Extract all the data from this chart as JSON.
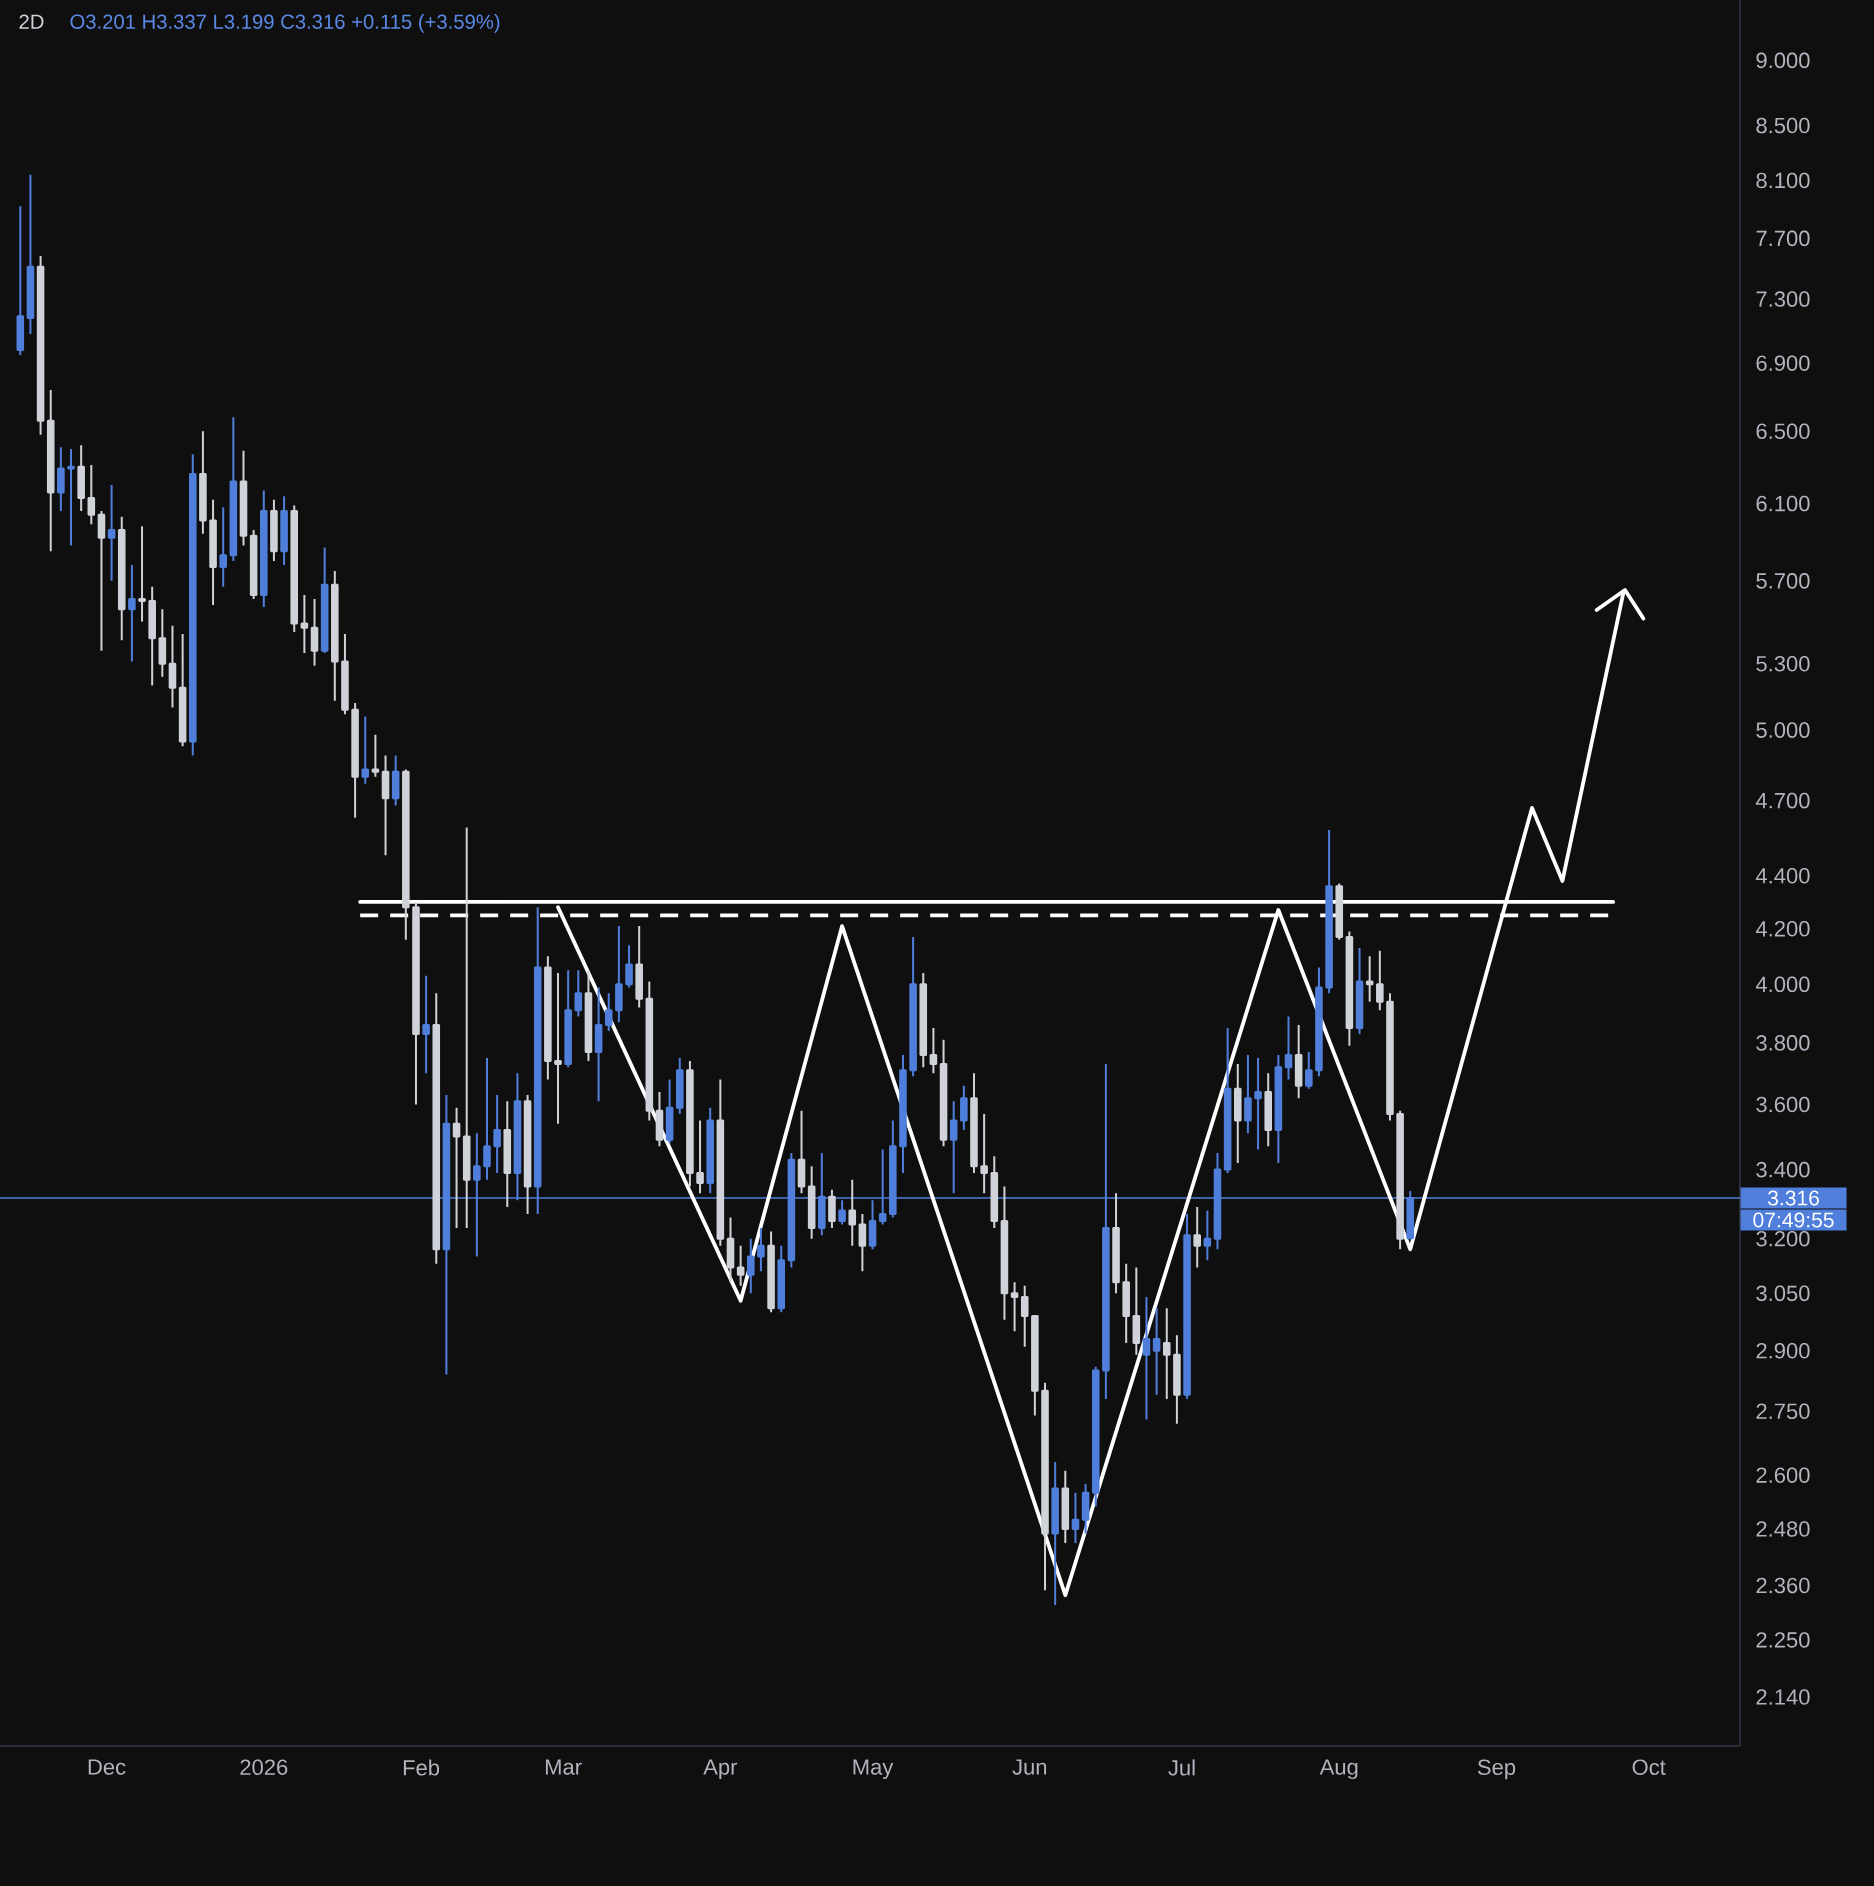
{
  "chart_data": {
    "type": "candlestick",
    "title": "2D",
    "subtitle": "O3.201 H3.337 L3.199 C3.316 +0.115 (+3.59%)",
    "x": [
      "2025-11-14",
      "2025-11-16",
      "2025-11-18",
      "2025-11-20",
      "2025-11-22",
      "2025-11-24",
      "2025-11-26",
      "2025-11-28",
      "2025-11-30",
      "2025-12-02",
      "2025-12-04",
      "2025-12-06",
      "2025-12-08",
      "2025-12-10",
      "2025-12-12",
      "2025-12-14",
      "2025-12-16",
      "2025-12-18",
      "2025-12-20",
      "2025-12-22",
      "2025-12-24",
      "2025-12-26",
      "2025-12-28",
      "2025-12-30",
      "2026-01-01",
      "2026-01-03",
      "2026-01-05",
      "2026-01-07",
      "2026-01-09",
      "2026-01-11",
      "2026-01-13",
      "2026-01-15",
      "2026-01-17",
      "2026-01-19",
      "2026-01-21",
      "2026-01-23",
      "2026-01-25",
      "2026-01-27",
      "2026-01-29",
      "2026-01-31",
      "2026-02-02",
      "2026-02-04",
      "2026-02-06",
      "2026-02-08",
      "2026-02-10",
      "2026-02-12",
      "2026-02-14",
      "2026-02-16",
      "2026-02-18",
      "2026-02-20",
      "2026-02-22",
      "2026-02-24",
      "2026-02-26",
      "2026-02-28",
      "2026-03-02",
      "2026-03-04",
      "2026-03-06",
      "2026-03-08",
      "2026-03-10",
      "2026-03-12",
      "2026-03-14",
      "2026-03-16",
      "2026-03-18",
      "2026-03-20",
      "2026-03-22",
      "2026-03-24",
      "2026-03-26",
      "2026-03-28",
      "2026-03-30",
      "2026-04-01",
      "2026-04-03",
      "2026-04-05",
      "2026-04-07",
      "2026-04-09",
      "2026-04-11",
      "2026-04-13",
      "2026-04-15",
      "2026-04-17",
      "2026-04-19",
      "2026-04-21",
      "2026-04-23",
      "2026-04-25",
      "2026-04-27",
      "2026-04-29",
      "2026-05-01",
      "2026-05-03",
      "2026-05-05",
      "2026-05-07",
      "2026-05-09",
      "2026-05-11",
      "2026-05-13",
      "2026-05-15",
      "2026-05-17",
      "2026-05-19",
      "2026-05-21",
      "2026-05-23",
      "2026-05-25",
      "2026-05-27",
      "2026-05-29",
      "2026-05-31",
      "2026-06-02",
      "2026-06-04",
      "2026-06-06",
      "2026-06-08",
      "2026-06-10",
      "2026-06-12",
      "2026-06-14",
      "2026-06-16",
      "2026-06-18",
      "2026-06-20",
      "2026-06-22",
      "2026-06-24",
      "2026-06-26",
      "2026-06-28",
      "2026-06-30",
      "2026-07-02",
      "2026-07-04",
      "2026-07-06",
      "2026-07-08",
      "2026-07-10",
      "2026-07-12",
      "2026-07-14",
      "2026-07-16",
      "2026-07-18",
      "2026-07-20",
      "2026-07-22",
      "2026-07-24",
      "2026-07-26",
      "2026-07-28",
      "2026-07-30",
      "2026-08-01",
      "2026-08-03",
      "2026-08-05",
      "2026-08-07",
      "2026-08-09",
      "2026-08-11",
      "2026-08-13",
      "2026-08-15"
    ],
    "ohlc": [
      [
        6.98,
        7.92,
        6.95,
        7.19
      ],
      [
        7.18,
        8.14,
        7.08,
        7.51
      ],
      [
        7.51,
        7.58,
        6.48,
        6.56
      ],
      [
        6.56,
        6.74,
        5.85,
        6.16
      ],
      [
        6.16,
        6.41,
        6.06,
        6.29
      ],
      [
        6.29,
        6.4,
        5.88,
        6.3
      ],
      [
        6.3,
        6.42,
        6.06,
        6.13
      ],
      [
        6.13,
        6.31,
        5.99,
        6.04
      ],
      [
        6.04,
        6.06,
        5.36,
        5.92
      ],
      [
        5.92,
        6.2,
        5.7,
        5.96
      ],
      [
        5.96,
        6.03,
        5.41,
        5.56
      ],
      [
        5.56,
        5.78,
        5.31,
        5.61
      ],
      [
        5.61,
        5.98,
        5.5,
        5.6
      ],
      [
        5.6,
        5.67,
        5.2,
        5.42
      ],
      [
        5.42,
        5.56,
        5.24,
        5.3
      ],
      [
        5.3,
        5.48,
        5.1,
        5.19
      ],
      [
        5.19,
        5.44,
        4.93,
        4.95
      ],
      [
        4.95,
        6.37,
        4.89,
        6.26
      ],
      [
        6.26,
        6.5,
        5.94,
        6.01
      ],
      [
        6.01,
        6.12,
        5.58,
        5.77
      ],
      [
        5.77,
        6.08,
        5.67,
        5.83
      ],
      [
        5.83,
        6.58,
        5.8,
        6.22
      ],
      [
        6.22,
        6.39,
        5.88,
        5.93
      ],
      [
        5.93,
        5.96,
        5.61,
        5.63
      ],
      [
        5.63,
        6.17,
        5.57,
        6.06
      ],
      [
        6.06,
        6.12,
        5.8,
        5.85
      ],
      [
        5.85,
        6.14,
        5.78,
        6.06
      ],
      [
        6.06,
        6.09,
        5.45,
        5.49
      ],
      [
        5.49,
        5.63,
        5.35,
        5.47
      ],
      [
        5.47,
        5.61,
        5.29,
        5.36
      ],
      [
        5.36,
        5.87,
        5.35,
        5.68
      ],
      [
        5.68,
        5.75,
        5.13,
        5.31
      ],
      [
        5.31,
        5.44,
        5.07,
        5.09
      ],
      [
        5.09,
        5.12,
        4.63,
        4.8
      ],
      [
        4.8,
        5.06,
        4.77,
        4.83
      ],
      [
        4.83,
        4.98,
        4.8,
        4.82
      ],
      [
        4.82,
        4.89,
        4.48,
        4.71
      ],
      [
        4.71,
        4.89,
        4.68,
        4.82
      ],
      [
        4.82,
        4.83,
        4.16,
        4.28
      ],
      [
        4.28,
        4.3,
        3.6,
        3.83
      ],
      [
        3.83,
        4.03,
        3.7,
        3.86
      ],
      [
        3.86,
        3.97,
        3.13,
        3.17
      ],
      [
        3.17,
        3.63,
        2.84,
        3.54
      ],
      [
        3.54,
        3.59,
        3.23,
        3.5
      ],
      [
        3.5,
        4.59,
        3.23,
        3.37
      ],
      [
        3.37,
        3.51,
        3.15,
        3.41
      ],
      [
        3.41,
        3.75,
        3.37,
        3.47
      ],
      [
        3.47,
        3.63,
        3.39,
        3.52
      ],
      [
        3.52,
        3.61,
        3.29,
        3.39
      ],
      [
        3.39,
        3.7,
        3.31,
        3.61
      ],
      [
        3.61,
        3.63,
        3.27,
        3.35
      ],
      [
        3.35,
        4.28,
        3.27,
        4.06
      ],
      [
        4.06,
        4.1,
        3.68,
        3.74
      ],
      [
        3.74,
        4.04,
        3.54,
        3.73
      ],
      [
        3.73,
        4.05,
        3.72,
        3.91
      ],
      [
        3.91,
        4.05,
        3.89,
        3.97
      ],
      [
        3.97,
        4.05,
        3.74,
        3.77
      ],
      [
        3.77,
        3.99,
        3.61,
        3.86
      ],
      [
        3.86,
        3.97,
        3.84,
        3.91
      ],
      [
        3.91,
        4.21,
        3.87,
        4.0
      ],
      [
        4.0,
        4.14,
        3.99,
        4.07
      ],
      [
        4.07,
        4.21,
        3.92,
        3.95
      ],
      [
        3.95,
        4.01,
        3.55,
        3.58
      ],
      [
        3.58,
        3.64,
        3.47,
        3.49
      ],
      [
        3.49,
        3.68,
        3.48,
        3.59
      ],
      [
        3.59,
        3.75,
        3.57,
        3.71
      ],
      [
        3.71,
        3.74,
        3.35,
        3.39
      ],
      [
        3.39,
        3.55,
        3.33,
        3.36
      ],
      [
        3.36,
        3.59,
        3.33,
        3.55
      ],
      [
        3.55,
        3.68,
        3.18,
        3.2
      ],
      [
        3.2,
        3.26,
        3.08,
        3.12
      ],
      [
        3.12,
        3.18,
        3.07,
        3.1
      ],
      [
        3.1,
        3.2,
        3.05,
        3.15
      ],
      [
        3.15,
        3.23,
        3.11,
        3.18
      ],
      [
        3.18,
        3.22,
        3.0,
        3.01
      ],
      [
        3.01,
        3.18,
        3.0,
        3.14
      ],
      [
        3.14,
        3.45,
        3.12,
        3.43
      ],
      [
        3.43,
        3.58,
        3.33,
        3.35
      ],
      [
        3.35,
        3.41,
        3.2,
        3.23
      ],
      [
        3.23,
        3.45,
        3.21,
        3.32
      ],
      [
        3.32,
        3.34,
        3.23,
        3.25
      ],
      [
        3.25,
        3.31,
        3.24,
        3.28
      ],
      [
        3.28,
        3.37,
        3.18,
        3.24
      ],
      [
        3.24,
        3.27,
        3.11,
        3.18
      ],
      [
        3.18,
        3.31,
        3.17,
        3.25
      ],
      [
        3.25,
        3.46,
        3.24,
        3.27
      ],
      [
        3.27,
        3.55,
        3.26,
        3.47
      ],
      [
        3.47,
        3.76,
        3.39,
        3.71
      ],
      [
        3.71,
        4.17,
        3.69,
        4.0
      ],
      [
        4.0,
        4.04,
        3.72,
        3.76
      ],
      [
        3.76,
        3.85,
        3.7,
        3.73
      ],
      [
        3.73,
        3.81,
        3.47,
        3.49
      ],
      [
        3.49,
        3.61,
        3.33,
        3.55
      ],
      [
        3.55,
        3.66,
        3.52,
        3.62
      ],
      [
        3.62,
        3.7,
        3.39,
        3.41
      ],
      [
        3.41,
        3.57,
        3.33,
        3.39
      ],
      [
        3.39,
        3.44,
        3.23,
        3.25
      ],
      [
        3.25,
        3.35,
        2.98,
        3.05
      ],
      [
        3.05,
        3.08,
        2.95,
        3.04
      ],
      [
        3.04,
        3.07,
        2.91,
        2.99
      ],
      [
        2.99,
        2.99,
        2.74,
        2.8
      ],
      [
        2.8,
        2.82,
        2.35,
        2.47
      ],
      [
        2.47,
        2.63,
        2.32,
        2.57
      ],
      [
        2.57,
        2.61,
        2.45,
        2.48
      ],
      [
        2.48,
        2.56,
        2.45,
        2.5
      ],
      [
        2.5,
        2.58,
        2.47,
        2.56
      ],
      [
        2.56,
        2.86,
        2.53,
        2.85
      ],
      [
        2.85,
        3.73,
        2.78,
        3.23
      ],
      [
        3.23,
        3.33,
        3.05,
        3.08
      ],
      [
        3.08,
        3.13,
        2.92,
        2.99
      ],
      [
        2.99,
        3.12,
        2.89,
        2.92
      ],
      [
        2.89,
        3.04,
        2.73,
        2.93
      ],
      [
        2.9,
        3.01,
        2.79,
        2.93
      ],
      [
        2.92,
        3.01,
        2.78,
        2.89
      ],
      [
        2.89,
        2.94,
        2.72,
        2.79
      ],
      [
        2.79,
        3.27,
        2.78,
        3.21
      ],
      [
        3.21,
        3.29,
        3.12,
        3.18
      ],
      [
        3.18,
        3.28,
        3.14,
        3.2
      ],
      [
        3.2,
        3.45,
        3.17,
        3.4
      ],
      [
        3.4,
        3.85,
        3.39,
        3.65
      ],
      [
        3.65,
        3.73,
        3.42,
        3.55
      ],
      [
        3.55,
        3.76,
        3.51,
        3.62
      ],
      [
        3.62,
        3.75,
        3.46,
        3.64
      ],
      [
        3.64,
        3.7,
        3.47,
        3.52
      ],
      [
        3.52,
        3.76,
        3.42,
        3.72
      ],
      [
        3.72,
        3.89,
        3.68,
        3.76
      ],
      [
        3.76,
        3.86,
        3.62,
        3.66
      ],
      [
        3.66,
        3.77,
        3.65,
        3.71
      ],
      [
        3.71,
        4.06,
        3.69,
        3.99
      ],
      [
        3.99,
        4.58,
        3.97,
        4.36
      ],
      [
        4.36,
        4.37,
        4.16,
        4.17
      ],
      [
        4.17,
        4.19,
        3.79,
        3.85
      ],
      [
        3.85,
        4.13,
        3.83,
        4.01
      ],
      [
        4.01,
        4.1,
        3.94,
        4.0
      ],
      [
        4.0,
        4.12,
        3.91,
        3.94
      ],
      [
        3.94,
        3.97,
        3.55,
        3.57
      ],
      [
        3.57,
        3.58,
        3.17,
        3.2
      ],
      [
        3.201,
        3.337,
        3.199,
        3.316
      ]
    ],
    "colors": [
      "#4f7fdb",
      "#4f7fdb",
      "#cfd2d8",
      "#cfd2d8",
      "#4f7fdb",
      "#4f7fdb",
      "#cfd2d8",
      "#cfd2d8",
      "#cfd2d8",
      "#4f7fdb",
      "#cfd2d8",
      "#4f7fdb",
      "#cfd2d8",
      "#cfd2d8",
      "#cfd2d8",
      "#cfd2d8",
      "#cfd2d8",
      "#4f7fdb",
      "#cfd2d8",
      "#cfd2d8",
      "#4f7fdb",
      "#4f7fdb",
      "#cfd2d8",
      "#cfd2d8",
      "#4f7fdb",
      "#cfd2d8",
      "#4f7fdb",
      "#cfd2d8",
      "#cfd2d8",
      "#cfd2d8",
      "#4f7fdb",
      "#cfd2d8",
      "#cfd2d8",
      "#cfd2d8",
      "#4f7fdb",
      "#cfd2d8",
      "#cfd2d8",
      "#4f7fdb",
      "#cfd2d8",
      "#cfd2d8",
      "#4f7fdb",
      "#cfd2d8",
      "#4f7fdb",
      "#cfd2d8",
      "#cfd2d8",
      "#4f7fdb",
      "#4f7fdb",
      "#4f7fdb",
      "#cfd2d8",
      "#4f7fdb",
      "#cfd2d8",
      "#4f7fdb",
      "#cfd2d8",
      "#cfd2d8",
      "#4f7fdb",
      "#4f7fdb",
      "#cfd2d8",
      "#4f7fdb",
      "#4f7fdb",
      "#4f7fdb",
      "#4f7fdb",
      "#cfd2d8",
      "#cfd2d8",
      "#cfd2d8",
      "#4f7fdb",
      "#4f7fdb",
      "#cfd2d8",
      "#cfd2d8",
      "#4f7fdb",
      "#cfd2d8",
      "#cfd2d8",
      "#cfd2d8",
      "#4f7fdb",
      "#4f7fdb",
      "#cfd2d8",
      "#4f7fdb",
      "#4f7fdb",
      "#cfd2d8",
      "#cfd2d8",
      "#4f7fdb",
      "#cfd2d8",
      "#4f7fdb",
      "#cfd2d8",
      "#cfd2d8",
      "#4f7fdb",
      "#4f7fdb",
      "#4f7fdb",
      "#4f7fdb",
      "#4f7fdb",
      "#cfd2d8",
      "#cfd2d8",
      "#cfd2d8",
      "#4f7fdb",
      "#4f7fdb",
      "#cfd2d8",
      "#cfd2d8",
      "#cfd2d8",
      "#cfd2d8",
      "#cfd2d8",
      "#cfd2d8",
      "#cfd2d8",
      "#cfd2d8",
      "#4f7fdb",
      "#cfd2d8",
      "#4f7fdb",
      "#4f7fdb",
      "#4f7fdb",
      "#4f7fdb",
      "#cfd2d8",
      "#cfd2d8",
      "#cfd2d8",
      "#4f7fdb",
      "#4f7fdb",
      "#cfd2d8",
      "#cfd2d8",
      "#4f7fdb",
      "#cfd2d8",
      "#4f7fdb",
      "#4f7fdb",
      "#4f7fdb",
      "#cfd2d8",
      "#4f7fdb",
      "#4f7fdb",
      "#cfd2d8",
      "#4f7fdb",
      "#4f7fdb",
      "#cfd2d8",
      "#4f7fdb",
      "#4f7fdb",
      "#4f7fdb",
      "#cfd2d8",
      "#cfd2d8",
      "#4f7fdb",
      "#cfd2d8",
      "#cfd2d8",
      "#cfd2d8",
      "#cfd2d8",
      "#4f7fdb"
    ],
    "series": [
      {
        "type": "line",
        "x": [
          "2026-01-20",
          "2026-09-24"
        ],
        "values": [
          4.3,
          4.3
        ],
        "color": "#ffffff"
      },
      {
        "type": "line",
        "x": [
          "2026-01-20",
          "2026-09-24"
        ],
        "values": [
          4.25,
          4.25
        ],
        "color": "#ffffff",
        "line_style": "dashed"
      },
      {
        "type": "line",
        "x": [
          "2026-02-28",
          "2026-04-05",
          "2026-04-25",
          "2026-06-08",
          "2026-07-20",
          "2026-08-15",
          "2026-09-08",
          "2026-09-14",
          "2026-09-26"
        ],
        "values": [
          4.28,
          3.03,
          4.21,
          2.34,
          4.27,
          3.17,
          4.67,
          4.38,
          5.64
        ],
        "color": "#ffffff"
      }
    ],
    "ref_lines": [
      {
        "axis": "y",
        "value": 3.316,
        "label": "3.316",
        "color": "#4f7fdb"
      }
    ],
    "annotations": [
      "07:49:55"
    ],
    "xlim": [
      "2025-11-10",
      "2026-10-19"
    ],
    "ylim": [
      2.05,
      9.49
    ],
    "log": true,
    "xticks": [
      {
        "value": "2025-12-01",
        "label": "Dec"
      },
      {
        "value": "2026-01-01",
        "label": "2026"
      },
      {
        "value": "2026-02-01",
        "label": "Feb"
      },
      {
        "value": "2026-03-01",
        "label": "Mar"
      },
      {
        "value": "2026-04-01",
        "label": "Apr"
      },
      {
        "value": "2026-05-01",
        "label": "May"
      },
      {
        "value": "2026-06-01",
        "label": "Jun"
      },
      {
        "value": "2026-07-01",
        "label": "Jul"
      },
      {
        "value": "2026-08-01",
        "label": "Aug"
      },
      {
        "value": "2026-09-01",
        "label": "Sep"
      },
      {
        "value": "2026-10-01",
        "label": "Oct"
      }
    ],
    "yticks": [
      {
        "value": 2.14,
        "label": "2.140"
      },
      {
        "value": 2.25,
        "label": "2.250"
      },
      {
        "value": 2.36,
        "label": "2.360"
      },
      {
        "value": 2.48,
        "label": "2.480"
      },
      {
        "value": 2.6,
        "label": "2.600"
      },
      {
        "value": 2.75,
        "label": "2.750"
      },
      {
        "value": 2.9,
        "label": "2.900"
      },
      {
        "value": 3.05,
        "label": "3.050"
      },
      {
        "value": 3.2,
        "label": "3.200"
      },
      {
        "value": 3.4,
        "label": "3.400"
      },
      {
        "value": 3.6,
        "label": "3.600"
      },
      {
        "value": 3.8,
        "label": "3.800"
      },
      {
        "value": 4,
        "label": "4.000"
      },
      {
        "value": 4.2,
        "label": "4.200"
      },
      {
        "value": 4.4,
        "label": "4.400"
      },
      {
        "value": 4.7,
        "label": "4.700"
      },
      {
        "value": 5,
        "label": "5.000"
      },
      {
        "value": 5.3,
        "label": "5.300"
      },
      {
        "value": 5.7,
        "label": "5.700"
      },
      {
        "value": 6.1,
        "label": "6.100"
      },
      {
        "value": 6.5,
        "label": "6.500"
      },
      {
        "value": 6.9,
        "label": "6.900"
      },
      {
        "value": 7.3,
        "label": "7.300"
      },
      {
        "value": 7.7,
        "label": "7.700"
      },
      {
        "value": 8.1,
        "label": "8.100"
      },
      {
        "value": 8.5,
        "label": "8.500"
      },
      {
        "value": 9,
        "label": "9.000"
      }
    ]
  }
}
